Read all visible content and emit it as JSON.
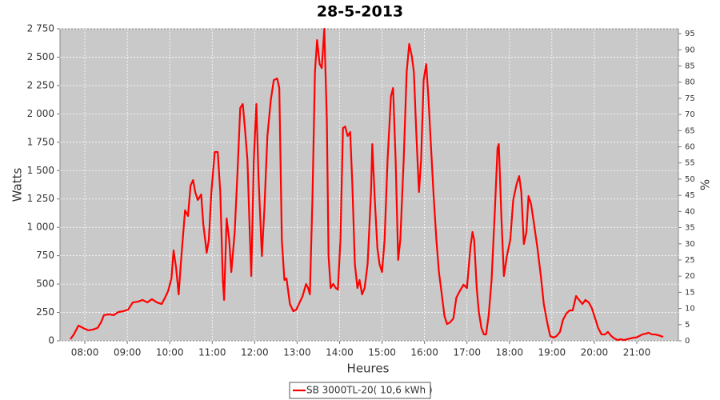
{
  "chart_data": {
    "type": "line",
    "title": "28-5-2013",
    "x_label": "Heures",
    "y_label": "Watts",
    "y2_label": "%",
    "xlim": [
      7.415,
      21.98
    ],
    "xticks": [
      {
        "value": 8,
        "label": "08:00"
      },
      {
        "value": 9,
        "label": "09:00"
      },
      {
        "value": 10,
        "label": "10:00"
      },
      {
        "value": 11,
        "label": "11:00"
      },
      {
        "value": 12,
        "label": "12:00"
      },
      {
        "value": 13,
        "label": "13:00"
      },
      {
        "value": 14,
        "label": "14:00"
      },
      {
        "value": 15,
        "label": "15:00"
      },
      {
        "value": 16,
        "label": "16:00"
      },
      {
        "value": 17,
        "label": "17:00"
      },
      {
        "value": 18,
        "label": "18:00"
      },
      {
        "value": 19,
        "label": "19:00"
      },
      {
        "value": 20,
        "label": "20:00"
      },
      {
        "value": 21,
        "label": "21:00"
      }
    ],
    "ylim": [
      0,
      2750
    ],
    "yticks": [
      0,
      250,
      500,
      750,
      {
        "value": 1000,
        "label": "1 000"
      },
      {
        "value": 1250,
        "label": "1 250"
      },
      {
        "value": 1500,
        "label": "1 500"
      },
      {
        "value": 1750,
        "label": "1 750"
      },
      {
        "value": 2000,
        "label": "2 000"
      },
      {
        "value": 2250,
        "label": "2 250"
      },
      {
        "value": 2500,
        "label": "2 500"
      },
      {
        "value": 2750,
        "label": "2 750"
      }
    ],
    "y2lim": [
      0,
      96.5
    ],
    "y2ticks": [
      0,
      5,
      10,
      15,
      20,
      25,
      30,
      35,
      40,
      45,
      50,
      55,
      60,
      65,
      70,
      75,
      80,
      85,
      90,
      95
    ],
    "grid": true,
    "legend": "bottom",
    "x": [
      7.66,
      7.74,
      7.85,
      7.96,
      8.08,
      8.19,
      8.3,
      8.38,
      8.45,
      8.57,
      8.68,
      8.79,
      8.91,
      9.02,
      9.13,
      9.25,
      9.36,
      9.47,
      9.58,
      9.7,
      9.81,
      9.89,
      9.96,
      10.04,
      10.09,
      10.15,
      10.21,
      10.26,
      10.36,
      10.43,
      10.49,
      10.55,
      10.6,
      10.66,
      10.74,
      10.79,
      10.87,
      10.92,
      10.98,
      11.06,
      11.13,
      11.19,
      11.25,
      11.28,
      11.34,
      11.4,
      11.45,
      11.53,
      11.6,
      11.66,
      11.72,
      11.77,
      11.83,
      11.89,
      11.92,
      11.98,
      12.04,
      12.09,
      12.17,
      12.23,
      12.3,
      12.38,
      12.45,
      12.53,
      12.58,
      12.64,
      12.7,
      12.75,
      12.83,
      12.91,
      12.98,
      13.06,
      13.13,
      13.21,
      13.26,
      13.3,
      13.36,
      13.42,
      13.47,
      13.53,
      13.58,
      13.64,
      13.7,
      13.74,
      13.79,
      13.85,
      13.91,
      13.96,
      14.02,
      14.08,
      14.13,
      14.19,
      14.25,
      14.3,
      14.36,
      14.42,
      14.47,
      14.53,
      14.59,
      14.66,
      14.74,
      14.77,
      14.83,
      14.89,
      14.94,
      15.0,
      15.06,
      15.13,
      15.21,
      15.26,
      15.32,
      15.38,
      15.43,
      15.51,
      15.58,
      15.64,
      15.7,
      15.75,
      15.81,
      15.87,
      15.92,
      15.98,
      16.04,
      16.09,
      16.15,
      16.21,
      16.28,
      16.34,
      16.4,
      16.47,
      16.53,
      16.6,
      16.68,
      16.75,
      16.85,
      16.92,
      17.0,
      17.08,
      17.13,
      17.17,
      17.23,
      17.28,
      17.34,
      17.4,
      17.45,
      17.51,
      17.58,
      17.66,
      17.72,
      17.75,
      17.81,
      17.87,
      17.94,
      18.02,
      18.09,
      18.17,
      18.23,
      18.28,
      18.34,
      18.4,
      18.45,
      18.51,
      18.58,
      18.66,
      18.74,
      18.81,
      18.89,
      18.96,
      19.04,
      19.11,
      19.19,
      19.26,
      19.34,
      19.42,
      19.49,
      19.57,
      19.64,
      19.72,
      19.79,
      19.87,
      19.94,
      20.02,
      20.09,
      20.17,
      20.25,
      20.32,
      20.4,
      20.47,
      20.55,
      20.62,
      20.7,
      20.77,
      20.85,
      20.92,
      20.98,
      21.06,
      21.13,
      21.21,
      21.28,
      21.36,
      21.43,
      21.51,
      21.62
    ],
    "series": [
      {
        "name": "SB 3000TL-20( 10,6 kWh )",
        "color": "#ff0000",
        "values": [
          14,
          56,
          134,
          113,
          92,
          99,
          113,
          162,
          226,
          233,
          226,
          254,
          261,
          275,
          338,
          345,
          360,
          338,
          367,
          338,
          324,
          381,
          437,
          550,
          797,
          642,
          409,
          677,
          1150,
          1100,
          1368,
          1417,
          1311,
          1241,
          1290,
          1029,
          776,
          889,
          1311,
          1664,
          1664,
          1311,
          536,
          360,
          1079,
          889,
          606,
          959,
          1523,
          2052,
          2087,
          1875,
          1593,
          889,
          571,
          1593,
          2087,
          1452,
          747,
          1170,
          1805,
          2122,
          2298,
          2312,
          2228,
          889,
          536,
          550,
          324,
          261,
          275,
          338,
          395,
          501,
          465,
          409,
          1241,
          2369,
          2651,
          2439,
          2404,
          2750,
          1946,
          747,
          465,
          501,
          465,
          451,
          889,
          1875,
          1889,
          1805,
          1840,
          1382,
          677,
          465,
          536,
          409,
          465,
          677,
          1311,
          1734,
          1241,
          818,
          677,
          606,
          889,
          1593,
          2157,
          2228,
          1593,
          712,
          889,
          1593,
          2369,
          2616,
          2510,
          2369,
          1805,
          1311,
          1593,
          2298,
          2439,
          2157,
          1734,
          1311,
          889,
          606,
          430,
          219,
          148,
          162,
          197,
          381,
          451,
          494,
          465,
          818,
          959,
          889,
          465,
          254,
          113,
          56,
          56,
          219,
          536,
          1170,
          1699,
          1734,
          1100,
          571,
          747,
          889,
          1241,
          1382,
          1452,
          1311,
          853,
          959,
          1276,
          1205,
          1029,
          818,
          571,
          324,
          162,
          42,
          28,
          42,
          78,
          183,
          240,
          268,
          268,
          395,
          360,
          324,
          360,
          338,
          289,
          197,
          113,
          56,
          56,
          78,
          42,
          21,
          7,
          14,
          7,
          14,
          21,
          28,
          28,
          42,
          56,
          63,
          71,
          56,
          56,
          49,
          35
        ]
      }
    ]
  }
}
